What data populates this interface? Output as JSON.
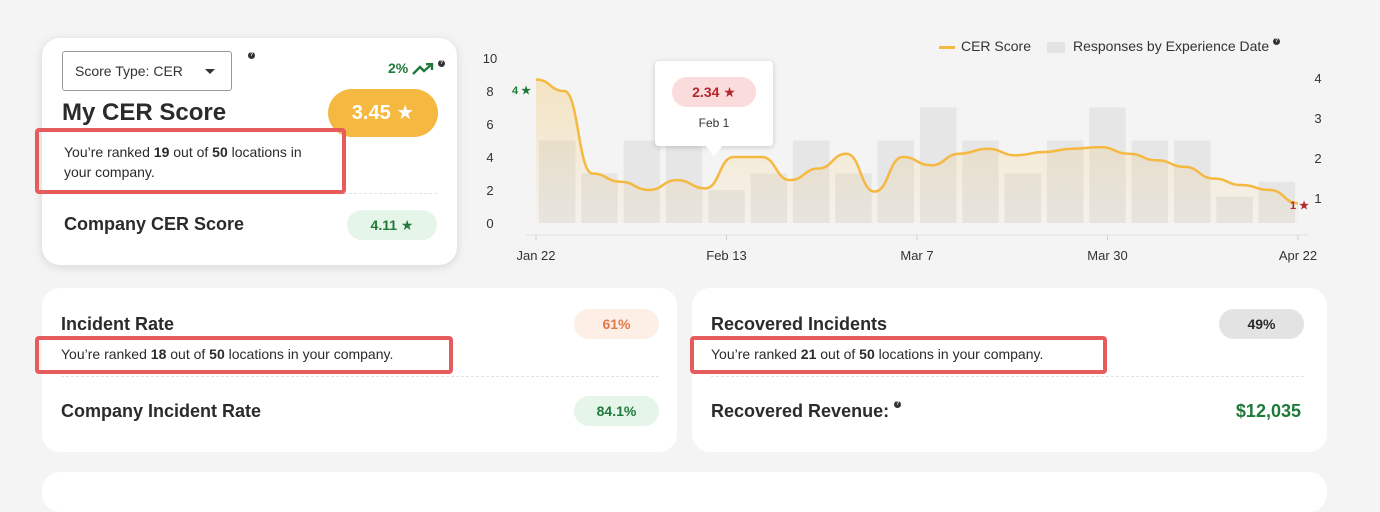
{
  "score_card": {
    "select_label": "Score Type: CER",
    "trend": "2%",
    "title": "My CER Score",
    "score": "3.45 ★",
    "rank_prefix": "You’re ranked ",
    "rank": "19",
    "rank_mid": " out of ",
    "total": "50",
    "rank_suffix_line1": " locations in",
    "rank_suffix_line2": "your company.",
    "company_label": "Company CER Score",
    "company_score": "4.11 ★"
  },
  "legend": {
    "line_label": "CER Score",
    "bar_label": "Responses by Experience Date"
  },
  "tooltip": {
    "value": "2.34 ★",
    "date": "Feb 1"
  },
  "chart_data": {
    "type": "bar+line",
    "x_ticks": [
      "Jan 22",
      "Feb 13",
      "Mar 7",
      "Mar 30",
      "Apr 22"
    ],
    "left_axis": {
      "ticks": [
        "0",
        "2",
        "4",
        "6",
        "8",
        "10"
      ],
      "ylim": [
        0,
        10
      ]
    },
    "right_axis": {
      "ticks": [
        "1",
        "2",
        "3",
        "4"
      ]
    },
    "bars": [
      5,
      3,
      5,
      5,
      2,
      3,
      5,
      3,
      5,
      7,
      5,
      3,
      5,
      7,
      5,
      5,
      1.6,
      2.5
    ],
    "line": [
      8.7,
      8.0,
      3.0,
      2.5,
      2.0,
      2.6,
      2.1,
      4.0,
      4.0,
      2.6,
      3.3,
      4.2,
      1.9,
      4.0,
      3.5,
      4.2,
      4.5,
      4.1,
      4.3,
      4.5,
      4.6,
      4.2,
      3.8,
      3.4,
      2.7,
      2.3,
      2.0,
      1.2
    ],
    "start_label": "4 ★",
    "end_label": "1 ★"
  },
  "incident": {
    "title": "Incident Rate",
    "badge": "61%",
    "rank_prefix": "You’re ranked ",
    "rank": "18",
    "rank_mid": " out of ",
    "total": "50",
    "rank_suffix": " locations in your company.",
    "company_label": "Company Incident Rate",
    "company_badge": "84.1%"
  },
  "recovered": {
    "title": "Recovered Incidents",
    "badge": "49%",
    "rank_prefix": "You’re ranked ",
    "rank": "21",
    "rank_mid": " out of ",
    "total": "50",
    "rank_suffix": " locations in your company.",
    "revenue_label": "Recovered Revenue:",
    "revenue_value": "$12,035"
  },
  "colors": {
    "accent": "#f5b942",
    "positive": "#1f7a3a",
    "negative": "#b3262b",
    "highlight": "#e65c5c"
  }
}
